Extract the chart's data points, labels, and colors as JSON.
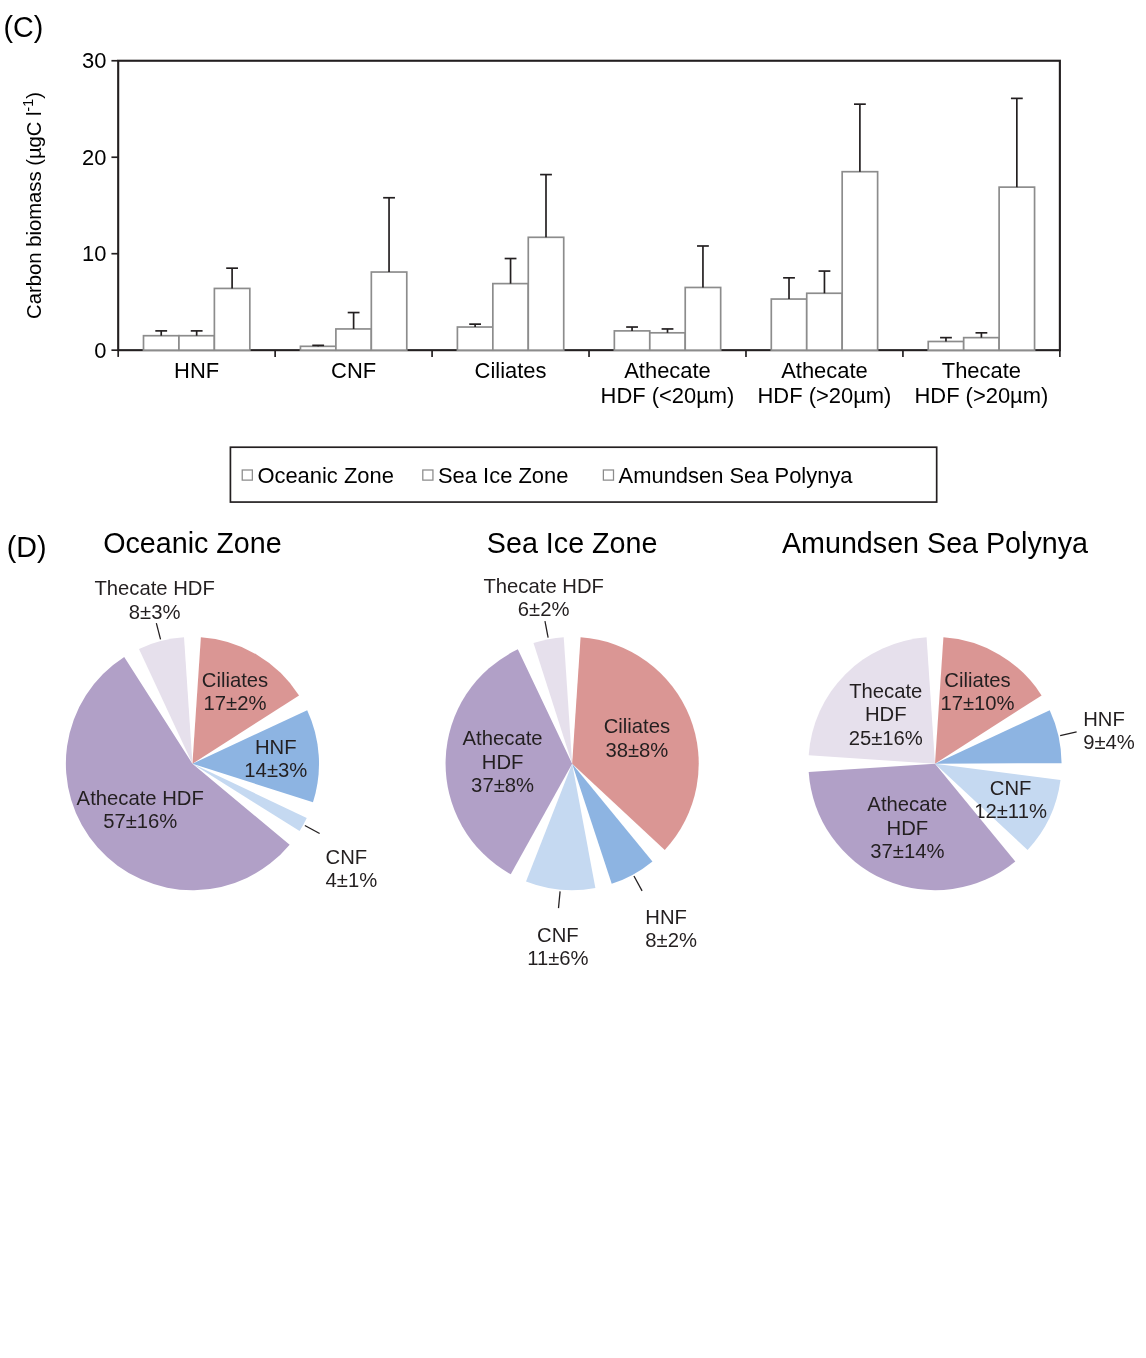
{
  "chart_data": [
    {
      "type": "bar",
      "ylabel": "Carbon biomass (µgC  l$^{-1}$)",
      "annotations": [
        "(C)"
      ],
      "categories": [
        "HNF",
        "CNF",
        "Ciliates",
        "Athecate HDF (<20µm)",
        "Athecate HDF (>20µm)",
        "Thecate HDF (>20µm)"
      ],
      "series": [
        {
          "name": "Oceanic Zone",
          "color": "#ffffff",
          "values": [
            1.5,
            0.4,
            2.4,
            2.0,
            5.3,
            0.9
          ],
          "errors": [
            0.5,
            0.1,
            0.3,
            0.4,
            2.2,
            0.4
          ]
        },
        {
          "name": "Sea Ice Zone",
          "color": "#ffffff",
          "values": [
            1.5,
            2.2,
            6.9,
            1.8,
            5.9,
            1.3
          ],
          "errors": [
            0.5,
            1.7,
            2.6,
            0.4,
            2.3,
            0.5
          ]
        },
        {
          "name": "Amundsen Sea Polynya",
          "color": "#ffffff",
          "values": [
            6.4,
            8.1,
            11.7,
            6.5,
            18.5,
            16.9
          ],
          "errors": [
            2.1,
            7.7,
            6.5,
            4.3,
            7.0,
            9.2
          ]
        }
      ],
      "ylim": [
        0,
        30
      ],
      "yticks": [
        0,
        10,
        20,
        30
      ],
      "legend": "bottom"
    },
    {
      "type": "pie",
      "title": "Oceanic Zone",
      "annotations": [
        "(D)"
      ],
      "categories": [
        "Ciliates",
        "HNF",
        "CNF",
        "Athecate HDF",
        "Thecate HDF"
      ],
      "values": [
        17,
        14,
        4,
        57,
        8
      ],
      "value_labels": [
        "17±2%",
        "14±3%",
        "4±1%",
        "57±16%",
        "8±3%"
      ],
      "colors": [
        "#da9694",
        "#8db4e2",
        "#c5d9f1",
        "#b1a0c7",
        "#e6e0ec"
      ]
    },
    {
      "type": "pie",
      "title": "Sea Ice Zone",
      "categories": [
        "Ciliates",
        "HNF",
        "CNF",
        "Athecate HDF",
        "Thecate HDF"
      ],
      "values": [
        38,
        8,
        11,
        37,
        6
      ],
      "value_labels": [
        "38±8%",
        "8±2%",
        "11±6%",
        "37±8%",
        "6±2%"
      ],
      "colors": [
        "#da9694",
        "#8db4e2",
        "#c5d9f1",
        "#b1a0c7",
        "#e6e0ec"
      ]
    },
    {
      "type": "pie",
      "title": "Amundsen Sea Polynya",
      "categories": [
        "Ciliates",
        "HNF",
        "CNF",
        "Athecate HDF",
        "Thecate HDF"
      ],
      "values": [
        17,
        9,
        12,
        37,
        25
      ],
      "value_labels": [
        "17±10%",
        "9±4%",
        "12±11%",
        "37±14%",
        "25±16%"
      ],
      "colors": [
        "#da9694",
        "#8db4e2",
        "#c5d9f1",
        "#b1a0c7",
        "#e6e0ec"
      ]
    }
  ]
}
